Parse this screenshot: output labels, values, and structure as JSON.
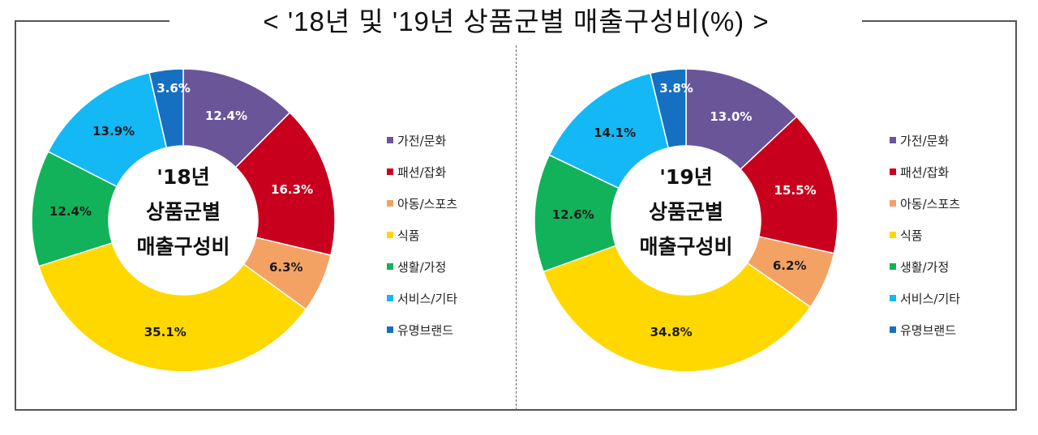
{
  "title": "< '18년 및 '19년 상품군별 매출구성비(%) >",
  "legend": [
    {
      "label": "가전/문화",
      "color": "#6a5599"
    },
    {
      "label": "패션/잡화",
      "color": "#c8001e"
    },
    {
      "label": "아동/스포츠",
      "color": "#f4a264"
    },
    {
      "label": "식품",
      "color": "#ffd800"
    },
    {
      "label": "생활/가정",
      "color": "#12b25a"
    },
    {
      "label": "서비스/기타",
      "color": "#13b8f5"
    },
    {
      "label": "유명브랜드",
      "color": "#1670c2"
    }
  ],
  "charts": [
    {
      "center_line1": "'18년",
      "center_line2": "상품군별",
      "center_line3": "매출구성비",
      "labels": [
        "12.4%",
        "16.3%",
        "6.3%",
        "35.1%",
        "12.4%",
        "13.9%",
        "3.6%"
      ]
    },
    {
      "center_line1": "'19년",
      "center_line2": "상품군별",
      "center_line3": "매출구성비",
      "labels": [
        "13.0%",
        "15.5%",
        "6.2%",
        "34.8%",
        "12.6%",
        "14.1%",
        "3.8%"
      ]
    }
  ],
  "chart_data": [
    {
      "type": "pie",
      "title": "'18년 상품군별 매출구성비",
      "categories": [
        "가전/문화",
        "패션/잡화",
        "아동/스포츠",
        "식품",
        "생활/가정",
        "서비스/기타",
        "유명브랜드"
      ],
      "values": [
        12.4,
        16.3,
        6.3,
        35.1,
        12.4,
        13.9,
        3.6
      ],
      "unit": "%",
      "donut": true,
      "legend_position": "right"
    },
    {
      "type": "pie",
      "title": "'19년 상품군별 매출구성비",
      "categories": [
        "가전/문화",
        "패션/잡화",
        "아동/스포츠",
        "식품",
        "생활/가정",
        "서비스/기타",
        "유명브랜드"
      ],
      "values": [
        13.0,
        15.5,
        6.2,
        34.8,
        12.6,
        14.1,
        3.8
      ],
      "unit": "%",
      "donut": true,
      "legend_position": "right"
    }
  ]
}
